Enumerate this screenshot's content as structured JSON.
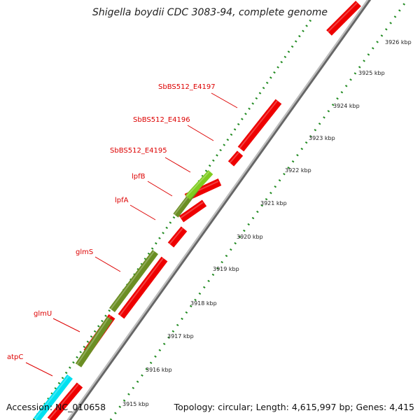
{
  "title": "Shigella boydii CDC 3083-94, complete genome",
  "accession": "Accession: NC_010658",
  "summary": "Topology: circular; Length: 4,615,997 bp; Genes: 4,415",
  "colors": {
    "red_gene": "#ee0000",
    "green_gene": "#6b8e23",
    "light_green_gene": "#7fcc20",
    "cyan_gene": "#00e0f0",
    "label": "#dd0000",
    "dots": "#228b22",
    "backbone": "#999999"
  },
  "ticks": [
    {
      "label": "3915 kbp"
    },
    {
      "label": "3916 kbp"
    },
    {
      "label": "3917 kbp"
    },
    {
      "label": "3918 kbp"
    },
    {
      "label": "3919 kbp"
    },
    {
      "label": "3920 kbp"
    },
    {
      "label": "3921 kbp"
    },
    {
      "label": "3922 kbp"
    },
    {
      "label": "3923 kbp"
    },
    {
      "label": "3924 kbp"
    },
    {
      "label": "3925 kbp"
    },
    {
      "label": "3926 kbp"
    }
  ],
  "gene_labels": [
    {
      "name": "atpC"
    },
    {
      "name": "glmU"
    },
    {
      "name": "glmS"
    },
    {
      "name": "lpfA"
    },
    {
      "name": "lpfB"
    },
    {
      "name": "SbBS512_E4195"
    },
    {
      "name": "SbBS512_E4196"
    },
    {
      "name": "SbBS512_E4197"
    }
  ]
}
